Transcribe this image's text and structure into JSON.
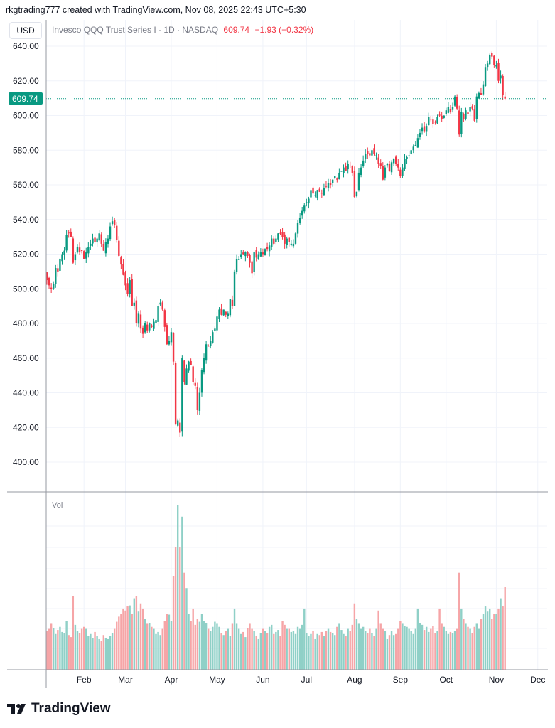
{
  "header": {
    "credit": "rkgtrading777 created with TradingView.com, Nov 08, 2025 22:43 UTC+5:30",
    "currency": "USD",
    "symbol_desc": "Invesco QQQ Trust Series I · 1D · NASDAQ",
    "last_price": "609.74",
    "change": "−1.93 (−0.32%)"
  },
  "price_label": "609.74",
  "volume_label": "Vol",
  "footer": {
    "brand": "TradingView"
  },
  "colors": {
    "up": "#089981",
    "down": "#f23645",
    "vol_up": "#8fd0c7",
    "vol_down": "#f6a5a7",
    "grid": "#f0f3fa",
    "last_line": "#089981"
  },
  "chart_data": {
    "type": "candlestick",
    "title": "Invesco QQQ Trust Series I · 1D · NASDAQ",
    "ylabel": "USD",
    "ylim": [
      385,
      640
    ],
    "yticks": [
      "640.00",
      "620.00",
      "600.00",
      "580.00",
      "560.00",
      "540.00",
      "520.00",
      "500.00",
      "480.00",
      "460.00",
      "440.00",
      "420.00",
      "400.00"
    ],
    "month_labels": [
      {
        "label": "Feb",
        "index": 17
      },
      {
        "label": "Mar",
        "index": 36
      },
      {
        "label": "Apr",
        "index": 57
      },
      {
        "label": "May",
        "index": 78
      },
      {
        "label": "Jun",
        "index": 99
      },
      {
        "label": "Jul",
        "index": 119
      },
      {
        "label": "Aug",
        "index": 141
      },
      {
        "label": "Sep",
        "index": 162
      },
      {
        "label": "Oct",
        "index": 183
      },
      {
        "label": "Nov",
        "index": 206
      },
      {
        "label": "Dec",
        "index": 225
      }
    ],
    "first_open": 511,
    "closes": [
      505,
      502,
      500,
      503,
      512,
      510,
      517,
      520,
      522,
      531,
      532,
      530,
      515,
      520,
      524,
      521,
      522,
      517,
      521,
      524,
      526,
      529,
      527,
      529,
      532,
      526,
      522,
      527,
      529,
      536,
      539,
      537,
      528,
      519,
      514,
      508,
      502,
      497,
      505,
      490,
      492,
      480,
      486,
      477,
      474,
      480,
      476,
      480,
      478,
      481,
      482,
      490,
      492,
      488,
      478,
      468,
      470,
      475,
      458,
      422,
      424,
      417,
      460,
      446,
      454,
      458,
      456,
      446,
      444,
      430,
      440,
      453,
      460,
      468,
      467,
      470,
      475,
      477,
      484,
      488,
      485,
      488,
      485,
      486,
      494,
      490,
      510,
      517,
      517,
      520,
      520,
      521,
      519,
      515,
      509,
      521,
      518,
      520,
      521,
      520,
      523,
      523,
      525,
      529,
      526,
      529,
      532,
      532,
      530,
      526,
      529,
      527,
      526,
      526,
      532,
      538,
      541,
      545,
      548,
      550,
      552,
      557,
      555,
      554,
      557,
      556,
      555,
      558,
      559,
      561,
      560,
      563,
      565,
      563,
      567,
      568,
      570,
      568,
      572,
      571,
      567,
      553,
      556,
      567,
      570,
      574,
      578,
      578,
      577,
      580,
      578,
      577,
      572,
      571,
      563,
      570,
      572,
      568,
      573,
      575,
      572,
      570,
      565,
      570,
      575,
      576,
      577,
      580,
      582,
      583,
      587,
      590,
      593,
      591,
      594,
      599,
      598,
      595,
      596,
      599,
      600,
      598,
      600,
      603,
      605,
      602,
      605,
      611,
      604,
      589,
      602,
      598,
      603,
      601,
      605,
      604,
      597,
      611,
      613,
      612,
      618,
      628,
      630,
      635,
      634,
      629,
      629,
      620,
      623,
      611.67,
      609.74
    ],
    "volumes_millions": [
      38,
      40,
      45,
      41,
      35,
      39,
      42,
      37,
      36,
      48,
      34,
      32,
      72,
      44,
      38,
      36,
      40,
      42,
      40,
      33,
      35,
      31,
      37,
      33,
      30,
      28,
      34,
      31,
      30,
      33,
      36,
      40,
      47,
      52,
      55,
      60,
      58,
      62,
      63,
      55,
      70,
      72,
      57,
      65,
      60,
      50,
      45,
      46,
      42,
      40,
      35,
      37,
      34,
      40,
      48,
      55,
      54,
      48,
      92,
      120,
      161,
      120,
      150,
      95,
      80,
      55,
      48,
      60,
      44,
      50,
      47,
      55,
      48,
      46,
      40,
      38,
      42,
      47,
      45,
      42,
      36,
      34,
      38,
      40,
      33,
      45,
      60,
      45,
      40,
      35,
      37,
      32,
      41,
      45,
      40,
      38,
      33,
      30,
      36,
      40,
      38,
      36,
      42,
      44,
      35,
      37,
      39,
      33,
      48,
      44,
      40,
      40,
      37,
      38,
      35,
      42,
      40,
      44,
      60,
      36,
      33,
      35,
      38,
      30,
      35,
      34,
      37,
      33,
      38,
      40,
      37,
      36,
      34,
      42,
      45,
      39,
      35,
      33,
      40,
      38,
      44,
      65,
      50,
      45,
      40,
      42,
      38,
      36,
      40,
      36,
      33,
      40,
      58,
      45,
      40,
      38,
      30,
      34,
      38,
      34,
      35,
      40,
      48,
      45,
      43,
      42,
      40,
      38,
      35,
      40,
      60,
      46,
      44,
      39,
      42,
      37,
      40,
      43,
      36,
      38,
      60,
      45,
      42,
      38,
      35,
      37,
      36,
      38,
      40,
      95,
      60,
      50,
      45,
      42,
      40,
      36,
      42,
      45,
      40,
      50,
      55,
      62,
      57,
      60,
      50,
      55,
      55,
      60,
      70,
      62,
      81
    ],
    "volume_max_millions": 161
  }
}
